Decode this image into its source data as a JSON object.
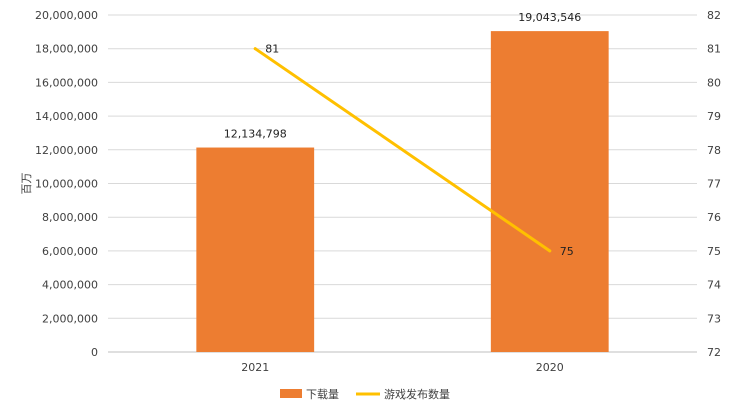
{
  "chart_data": {
    "type": "bar+line",
    "categories": [
      "2021",
      "2020"
    ],
    "series": [
      {
        "name": "下载量",
        "type": "bar",
        "axis": "left",
        "values": [
          12134798,
          19043546
        ],
        "labels": [
          "12,134,798",
          "19,043,546"
        ],
        "color": "#ED7D31"
      },
      {
        "name": "游戏发布数量",
        "type": "line",
        "axis": "right",
        "values": [
          81,
          75
        ],
        "labels": [
          "81",
          "75"
        ],
        "color": "#FFC000"
      }
    ],
    "ylabel": "百万",
    "ylim": [
      0,
      20000000
    ],
    "y_ticks": [
      "0",
      "2,000,000",
      "4,000,000",
      "6,000,000",
      "8,000,000",
      "10,000,000",
      "12,000,000",
      "14,000,000",
      "16,000,000",
      "18,000,000",
      "20,000,000"
    ],
    "y2lim": [
      72,
      82
    ],
    "y2_ticks": [
      "72",
      "73",
      "74",
      "75",
      "76",
      "77",
      "78",
      "79",
      "80",
      "81",
      "82"
    ],
    "grid": true,
    "legend_position": "bottom"
  }
}
